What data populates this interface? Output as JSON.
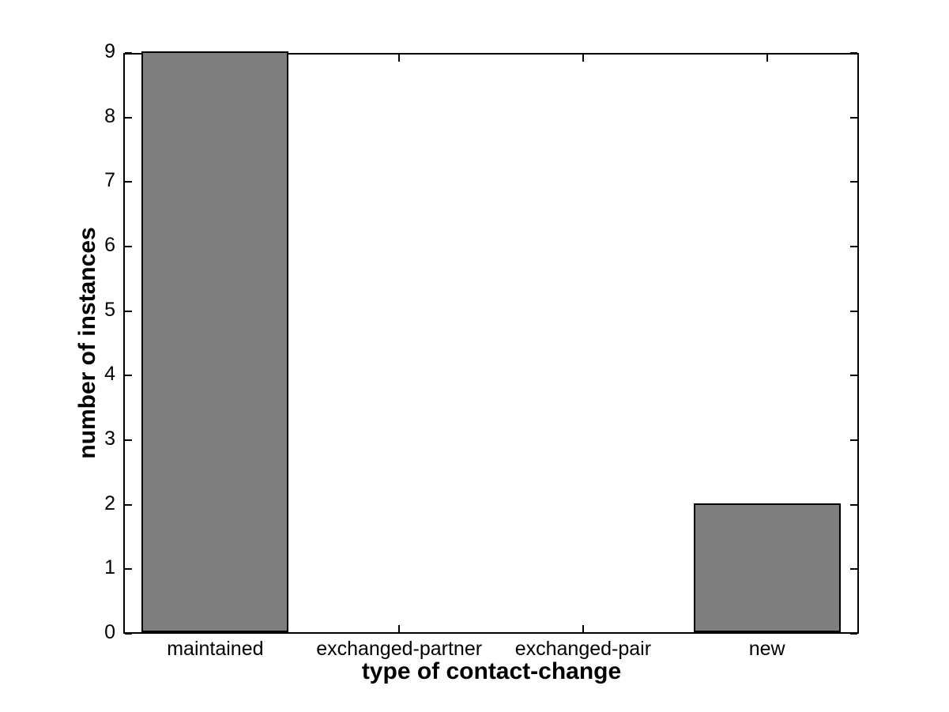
{
  "chart_data": {
    "type": "bar",
    "title": "",
    "xlabel": "type of contact-change",
    "ylabel": "number of instances",
    "categories": [
      "maintained",
      "exchanged-partner",
      "exchanged-pair",
      "new"
    ],
    "values": [
      9,
      0,
      0,
      2
    ],
    "ylim": [
      0,
      9
    ],
    "yticks": [
      "0",
      "1",
      "2",
      "3",
      "4",
      "5",
      "6",
      "7",
      "8",
      "9"
    ],
    "bar_width_fraction": 0.8,
    "grid": false,
    "legend_position": "none",
    "axes_box": "on",
    "colors": {
      "bar_fill": "#7f7f7f",
      "bar_edge": "#000000",
      "axis": "#000000",
      "text": "#000000",
      "background": "#ffffff"
    }
  }
}
